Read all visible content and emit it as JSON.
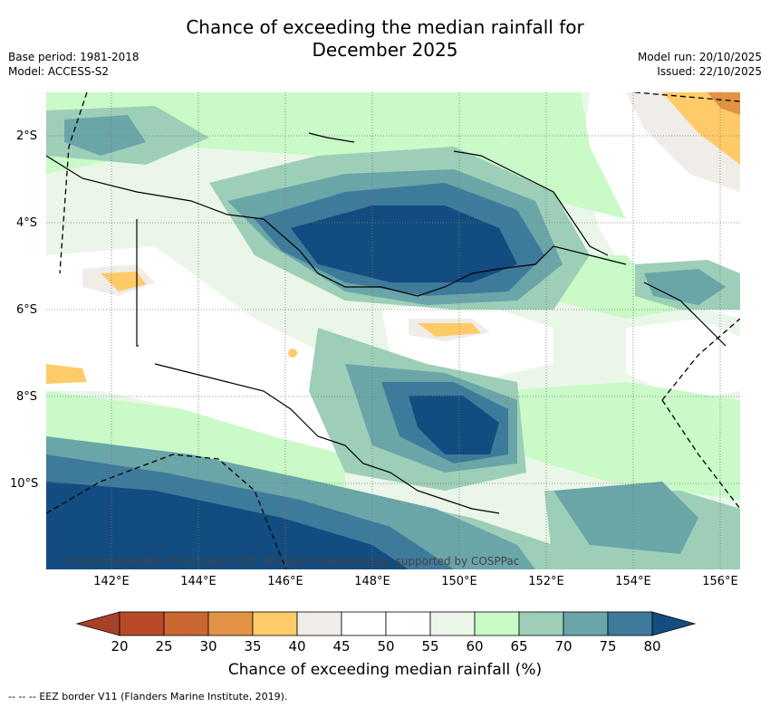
{
  "title": {
    "line1": "Chance of exceeding the median rainfall for",
    "line2": "December 2025"
  },
  "meta_left": {
    "base_period": "Base period: 1981-2018",
    "model": "Model: ACCESS-S2"
  },
  "meta_right": {
    "model_run": "Model run: 20/10/2025",
    "issued": "Issued: 22/10/2025"
  },
  "lat_labels": [
    "2°S",
    "4°S",
    "6°S",
    "8°S",
    "10°S"
  ],
  "lon_labels": [
    "142°E",
    "144°E",
    "146°E",
    "148°E",
    "150°E",
    "152°E",
    "154°E",
    "156°E"
  ],
  "copyright": "© Commonwealth of Australia 2025, Bureau of Meteorology, supported by COSPPac",
  "colorbar": {
    "label": "Chance of exceeding median rainfall (%)",
    "ticks": [
      "20",
      "25",
      "30",
      "35",
      "40",
      "45",
      "50",
      "55",
      "60",
      "65",
      "70",
      "75",
      "80"
    ],
    "colors": [
      "#a7412a",
      "#b84a28",
      "#cb6733",
      "#e39245",
      "#fecb68",
      "#f0ece8",
      "#ffffff",
      "#ffffff",
      "#e9f6e8",
      "#c9fac8",
      "#9dceb8",
      "#6aa5a8",
      "#3e7a9a",
      "#134c80"
    ]
  },
  "legend": {
    "dash": "-- -- --",
    "text": "EEZ border V11 (Flanders Marine Institute, 2019)."
  }
}
